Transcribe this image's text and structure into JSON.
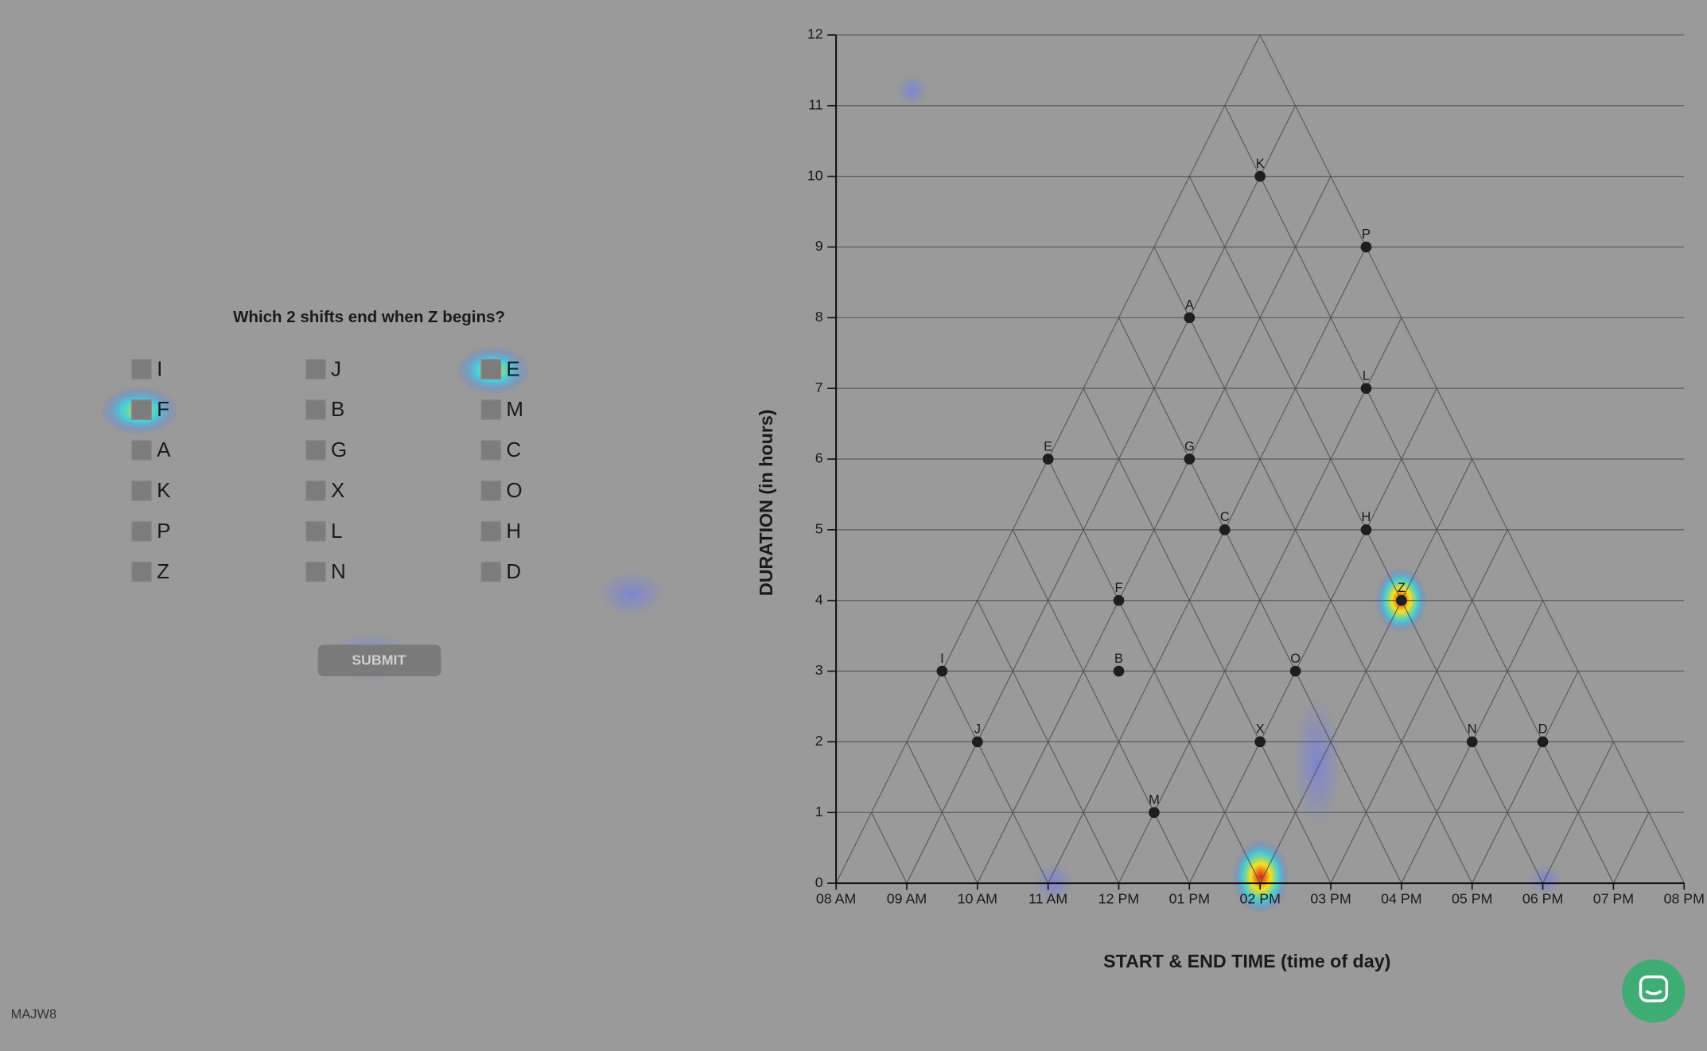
{
  "question": "Which 2 shifts end when Z begins?",
  "options": [
    [
      "I",
      "F",
      "A",
      "K",
      "P",
      "Z"
    ],
    [
      "J",
      "B",
      "G",
      "X",
      "L",
      "N"
    ],
    [
      "E",
      "M",
      "C",
      "O",
      "H",
      "D"
    ]
  ],
  "submit": "SUBMIT",
  "code": "MAJW8",
  "chart_data": {
    "type": "scatter",
    "x_label": "START & END TIME (time of day)",
    "y_label": "DURATION (in hours)",
    "xlim": [
      8,
      20
    ],
    "ylim": [
      0,
      12
    ],
    "xticks": [
      {
        "value": 8,
        "label": "08 AM"
      },
      {
        "value": 9,
        "label": "09 AM"
      },
      {
        "value": 10,
        "label": "10 AM"
      },
      {
        "value": 11,
        "label": "11 AM"
      },
      {
        "value": 12,
        "label": "12 PM"
      },
      {
        "value": 13,
        "label": "01 PM"
      },
      {
        "value": 14,
        "label": "02 PM"
      },
      {
        "value": 15,
        "label": "03 PM"
      },
      {
        "value": 16,
        "label": "04 PM"
      },
      {
        "value": 17,
        "label": "05 PM"
      },
      {
        "value": 18,
        "label": "06 PM"
      },
      {
        "value": 19,
        "label": "07 PM"
      },
      {
        "value": 20,
        "label": "08 PM"
      }
    ],
    "yticks": [
      0,
      1,
      2,
      3,
      4,
      5,
      6,
      7,
      8,
      9,
      10,
      11,
      12
    ],
    "point_labels": [
      "K",
      "P",
      "A",
      "L",
      "E",
      "G",
      "C",
      "H",
      "Z",
      "F",
      "I",
      "B",
      "O",
      "J",
      "X",
      "N",
      "D",
      "M"
    ],
    "x": [
      14,
      15.5,
      13,
      15.5,
      11,
      13,
      13.5,
      15.5,
      16,
      12,
      9.5,
      12,
      14.5,
      10,
      14,
      17,
      18,
      12.5
    ],
    "values": [
      10,
      9,
      8,
      7,
      6,
      6,
      5,
      5,
      4,
      4,
      3,
      3,
      3,
      2,
      2,
      2,
      2,
      1
    ],
    "color": "#1e1e1e"
  }
}
